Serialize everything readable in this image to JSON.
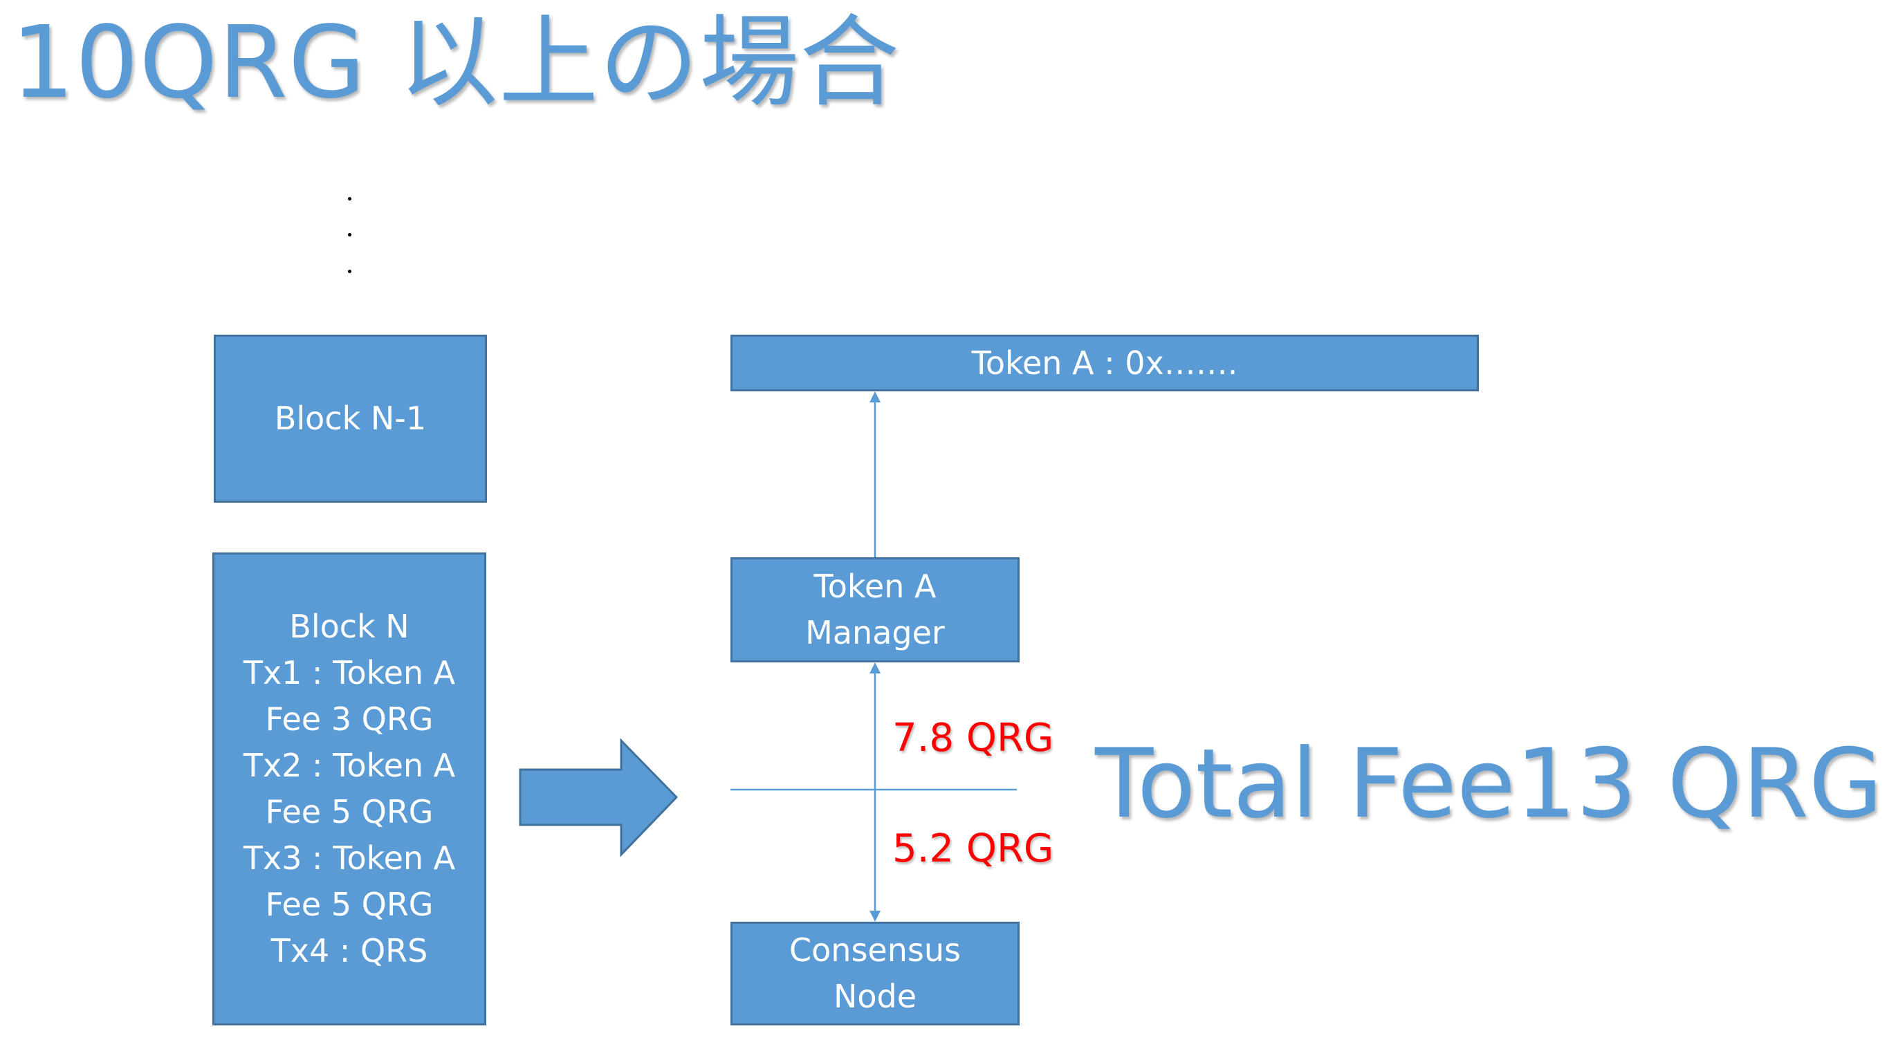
{
  "title": "10QRG 以上の場合",
  "blocks": {
    "block_n_minus_1": {
      "label": "Block N-1"
    },
    "block_n": {
      "lines": [
        "Block N",
        "Tx1 : Token A",
        "Fee 3 QRG",
        "Tx2 : Token A",
        "Fee 5 QRG",
        "Tx3 : Token A",
        "Fee 5 QRG",
        "Tx4 : QRS"
      ]
    }
  },
  "nodes": {
    "token_address": {
      "label": "Token A : 0x……."
    },
    "token_manager": {
      "lines": [
        "Token A",
        "Manager"
      ]
    },
    "consensus_node": {
      "lines": [
        "Consensus",
        "Node"
      ]
    }
  },
  "fees": {
    "upper": "7.8 QRG",
    "lower": "5.2 QRG",
    "total": "Total Fee13 QRG"
  },
  "colors": {
    "box_fill": "#5b9bd5",
    "box_border": "#41719c",
    "title_text": "#5b9bd5",
    "fee_text": "#ff0000"
  }
}
